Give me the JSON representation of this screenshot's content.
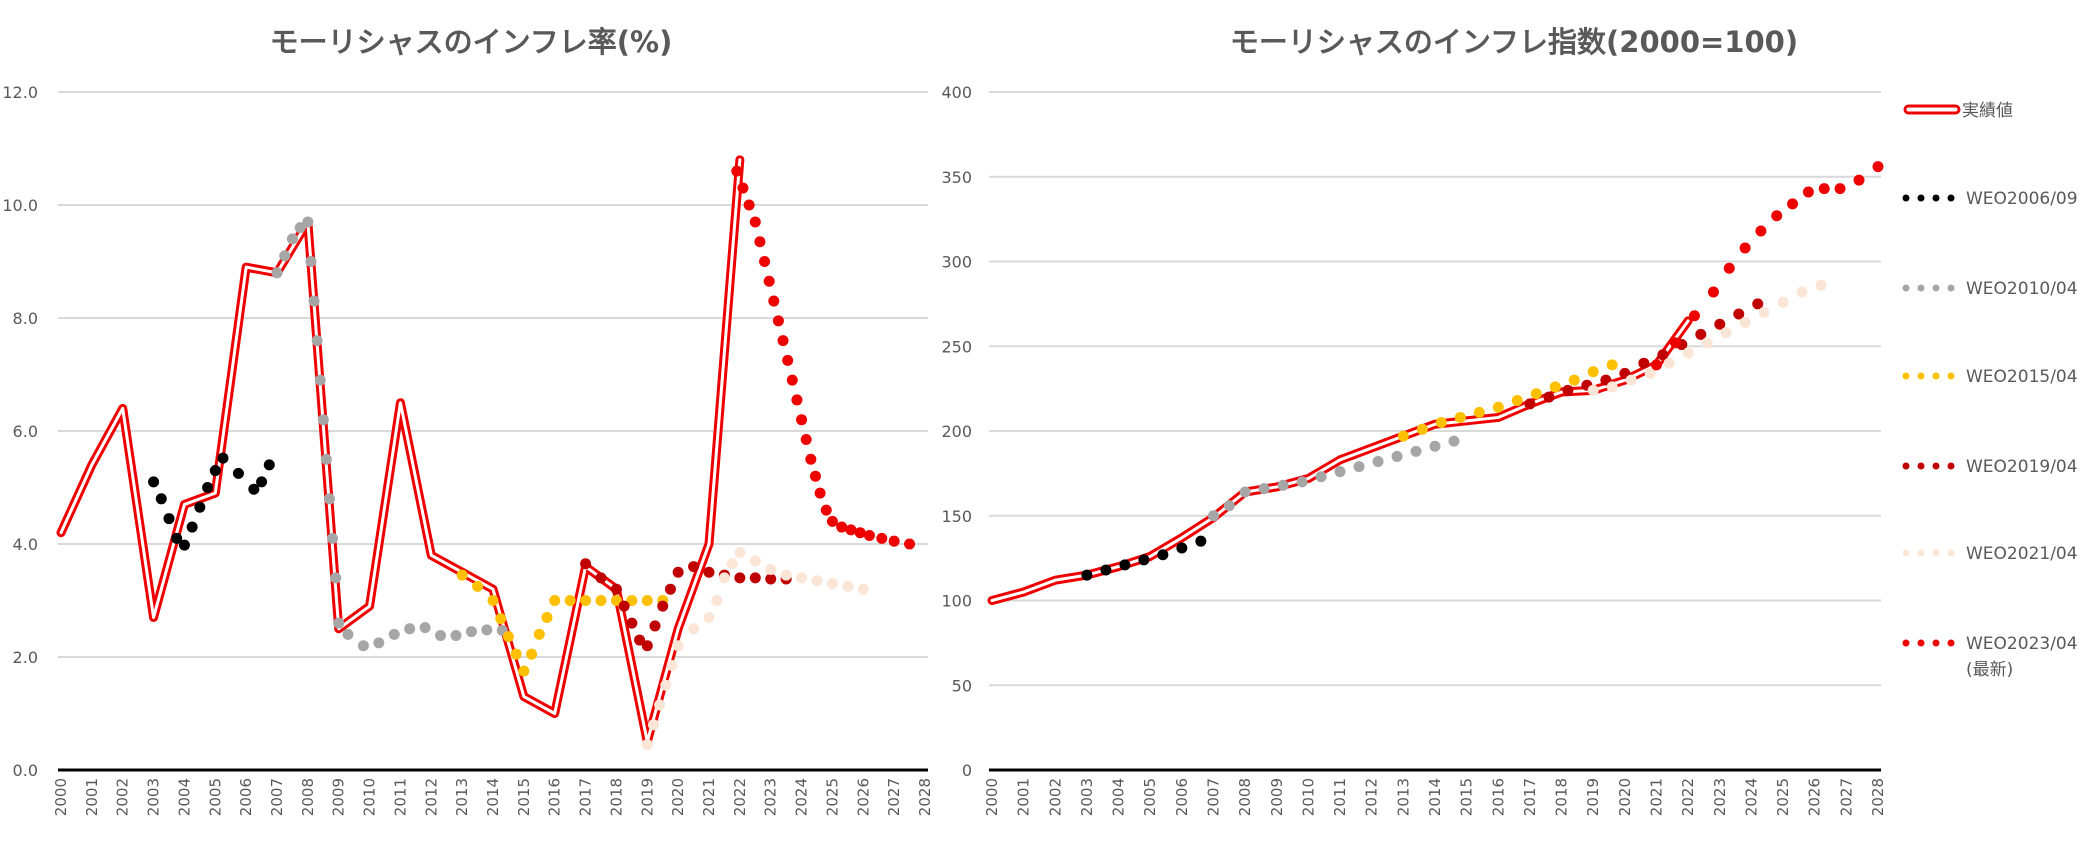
{
  "chart_data": [
    {
      "type": "line",
      "title": "モーリシャスのインフレ率(%)",
      "xlabel": "",
      "ylabel": "",
      "xlim": [
        2000,
        2028
      ],
      "ylim": [
        0,
        12
      ],
      "yticks": [
        "0.0",
        "2.0",
        "4.0",
        "6.0",
        "8.0",
        "10.0",
        "12.0"
      ],
      "ytick_values": [
        0,
        2,
        4,
        6,
        8,
        10,
        12
      ],
      "xticks": [
        "2000",
        "2001",
        "2002",
        "2003",
        "2004",
        "2005",
        "2006",
        "2007",
        "2008",
        "2009",
        "2010",
        "2011",
        "2012",
        "2013",
        "2014",
        "2015",
        "2016",
        "2017",
        "2018",
        "2019",
        "2020",
        "2021",
        "2022",
        "2023",
        "2024",
        "2025",
        "2026",
        "2027",
        "2028"
      ],
      "grid": true,
      "series": [
        {
          "name": "実績値",
          "style": "double-line",
          "color": "#ee0000",
          "x": [
            2000,
            2001,
            2002,
            2003,
            2004,
            2005,
            2006,
            2007,
            2008,
            2009,
            2010,
            2011,
            2012,
            2013,
            2014,
            2015,
            2016,
            2017,
            2018,
            2019,
            2020,
            2021,
            2022
          ],
          "y": [
            4.2,
            5.4,
            6.4,
            2.7,
            4.7,
            4.9,
            8.9,
            8.8,
            9.7,
            2.5,
            2.9,
            6.5,
            3.8,
            3.5,
            3.2,
            1.3,
            1.0,
            3.6,
            3.2,
            0.5,
            2.5,
            4.0,
            10.8
          ]
        },
        {
          "name": "WEO2006/09",
          "style": "dots",
          "color": "#000000",
          "x": [
            2003,
            2003.25,
            2003.5,
            2003.75,
            2004,
            2004.25,
            2004.5,
            2004.75,
            2005,
            2005.25,
            2005.75,
            2006.25,
            2006.5,
            2006.75
          ],
          "y": [
            5.1,
            4.8,
            4.45,
            4.1,
            3.98,
            4.3,
            4.65,
            5.0,
            5.3,
            5.52,
            5.25,
            4.97,
            5.1,
            5.4
          ]
        },
        {
          "name": "WEO2010/04",
          "style": "dots",
          "color": "#a6a6a6",
          "x": [
            2007,
            2007.25,
            2007.5,
            2007.75,
            2008,
            2008.1,
            2008.2,
            2008.3,
            2008.4,
            2008.5,
            2008.6,
            2008.7,
            2008.8,
            2008.9,
            2009,
            2009.3,
            2009.8,
            2010.3,
            2010.8,
            2011.3,
            2011.8,
            2012.3,
            2012.8,
            2013.3,
            2013.8,
            2014.3
          ],
          "y": [
            8.8,
            9.1,
            9.4,
            9.6,
            9.7,
            9.0,
            8.3,
            7.6,
            6.9,
            6.2,
            5.5,
            4.8,
            4.1,
            3.4,
            2.6,
            2.4,
            2.2,
            2.25,
            2.4,
            2.5,
            2.52,
            2.38,
            2.38,
            2.45,
            2.48,
            2.47
          ]
        },
        {
          "name": "WEO2015/04",
          "style": "dots",
          "color": "#ffc000",
          "x": [
            2013,
            2013.5,
            2014,
            2014.25,
            2014.5,
            2014.75,
            2015,
            2015.25,
            2015.5,
            2015.75,
            2016,
            2016.5,
            2017,
            2017.5,
            2018,
            2018.5,
            2019,
            2019.5
          ],
          "y": [
            3.45,
            3.25,
            3.0,
            2.68,
            2.36,
            2.05,
            1.75,
            2.05,
            2.4,
            2.7,
            3.0,
            3.0,
            3.0,
            3.0,
            3.0,
            3.0,
            3.0,
            3.0
          ]
        },
        {
          "name": "WEO2019/04",
          "style": "dots",
          "color": "#c00000",
          "x": [
            2017,
            2017.5,
            2018,
            2018.25,
            2018.5,
            2018.75,
            2019,
            2019.25,
            2019.5,
            2019.75,
            2020,
            2020.5,
            2021,
            2021.5,
            2022,
            2022.5,
            2023,
            2023.5
          ],
          "y": [
            3.65,
            3.4,
            3.2,
            2.9,
            2.6,
            2.3,
            2.2,
            2.55,
            2.9,
            3.2,
            3.5,
            3.6,
            3.5,
            3.45,
            3.4,
            3.4,
            3.38,
            3.38
          ]
        },
        {
          "name": "WEO2021/04",
          "style": "dots",
          "color": "#fbe5d6",
          "x": [
            2019,
            2019.2,
            2019.4,
            2019.6,
            2019.8,
            2020,
            2020.5,
            2021,
            2021.25,
            2021.5,
            2021.75,
            2022,
            2022.5,
            2023,
            2023.5,
            2024,
            2024.5,
            2025,
            2025.5,
            2026
          ],
          "y": [
            0.45,
            0.8,
            1.15,
            1.5,
            1.85,
            2.2,
            2.5,
            2.7,
            3.0,
            3.4,
            3.65,
            3.85,
            3.7,
            3.55,
            3.45,
            3.4,
            3.35,
            3.3,
            3.25,
            3.2
          ]
        },
        {
          "name": "WEO2023/04 (最新)",
          "style": "dots",
          "color": "#ee0000",
          "x": [
            2021.9,
            2022.1,
            2022.3,
            2022.5,
            2022.65,
            2022.8,
            2022.95,
            2023.1,
            2023.25,
            2023.4,
            2023.55,
            2023.7,
            2023.85,
            2024,
            2024.15,
            2024.3,
            2024.45,
            2024.6,
            2024.8,
            2025,
            2025.3,
            2025.6,
            2025.9,
            2026.2,
            2026.6,
            2027,
            2027.5
          ],
          "y": [
            10.6,
            10.3,
            10.0,
            9.7,
            9.35,
            9.0,
            8.65,
            8.3,
            7.95,
            7.6,
            7.25,
            6.9,
            6.55,
            6.2,
            5.85,
            5.5,
            5.2,
            4.9,
            4.6,
            4.4,
            4.3,
            4.25,
            4.2,
            4.15,
            4.1,
            4.05,
            4.0
          ]
        }
      ]
    },
    {
      "type": "line",
      "title": "モーリシャスのインフレ指数(2000=100)",
      "xlabel": "",
      "ylabel": "",
      "xlim": [
        2000,
        2028
      ],
      "ylim": [
        0,
        400
      ],
      "yticks": [
        "0",
        "50",
        "100",
        "150",
        "200",
        "250",
        "300",
        "350",
        "400"
      ],
      "ytick_values": [
        0,
        50,
        100,
        150,
        200,
        250,
        300,
        350,
        400
      ],
      "xticks": [
        "2000",
        "2001",
        "2002",
        "2003",
        "2004",
        "2005",
        "2006",
        "2007",
        "2008",
        "2009",
        "2010",
        "2011",
        "2012",
        "2013",
        "2014",
        "2015",
        "2016",
        "2017",
        "2018",
        "2019",
        "2020",
        "2021",
        "2022",
        "2023",
        "2024",
        "2025",
        "2026",
        "2027",
        "2028"
      ],
      "grid": true,
      "legend_position": "right",
      "series": [
        {
          "name": "実績値",
          "style": "double-line",
          "color": "#ee0000",
          "x": [
            2000,
            2001,
            2002,
            2003,
            2004,
            2005,
            2006,
            2007,
            2008,
            2009,
            2010,
            2011,
            2012,
            2013,
            2014,
            2015,
            2016,
            2017,
            2018,
            2019,
            2020,
            2021,
            2022
          ],
          "y": [
            100,
            105,
            112,
            115,
            120,
            126,
            137,
            149,
            164,
            167,
            172,
            183,
            190,
            197,
            204,
            206,
            208,
            216,
            223,
            224,
            230,
            239,
            265
          ]
        },
        {
          "name": "WEO2006/09",
          "style": "dots",
          "color": "#000000",
          "x": [
            2003,
            2003.6,
            2004.2,
            2004.8,
            2005.4,
            2006,
            2006.6
          ],
          "y": [
            115,
            118,
            121,
            124,
            127,
            131,
            135
          ]
        },
        {
          "name": "WEO2010/04",
          "style": "dots",
          "color": "#a6a6a6",
          "x": [
            2007,
            2007.5,
            2008,
            2008.6,
            2009.2,
            2009.8,
            2010.4,
            2011,
            2011.6,
            2012.2,
            2012.8,
            2013.4,
            2014,
            2014.6
          ],
          "y": [
            150,
            156,
            164,
            166,
            168,
            170,
            173,
            176,
            179,
            182,
            185,
            188,
            191,
            194
          ]
        },
        {
          "name": "WEO2015/04",
          "style": "dots",
          "color": "#ffc000",
          "x": [
            2013,
            2013.6,
            2014.2,
            2014.8,
            2015.4,
            2016,
            2016.6,
            2017.2,
            2017.8,
            2018.4,
            2019,
            2019.6
          ],
          "y": [
            197,
            201,
            205,
            208,
            211,
            214,
            218,
            222,
            226,
            230,
            235,
            239
          ]
        },
        {
          "name": "WEO2019/04",
          "style": "dots",
          "color": "#c00000",
          "x": [
            2017,
            2017.6,
            2018.2,
            2018.8,
            2019.4,
            2020,
            2020.6,
            2021.2,
            2021.8,
            2022.4,
            2023,
            2023.6,
            2024.2
          ],
          "y": [
            216,
            220,
            224,
            227,
            230,
            234,
            240,
            245,
            251,
            257,
            263,
            269,
            275
          ]
        },
        {
          "name": "WEO2021/04",
          "style": "dots",
          "color": "#fbe5d6",
          "x": [
            2019,
            2019.6,
            2020.2,
            2020.8,
            2021.4,
            2022,
            2022.6,
            2023.2,
            2023.8,
            2024.4,
            2025,
            2025.6,
            2026.2
          ],
          "y": [
            224,
            226,
            230,
            234,
            240,
            246,
            252,
            258,
            264,
            270,
            276,
            282,
            286
          ]
        },
        {
          "name": "WEO2023/04 (最新)",
          "style": "dots",
          "color": "#ee0000",
          "x": [
            2021,
            2021.6,
            2022.2,
            2022.8,
            2023.3,
            2023.8,
            2024.3,
            2024.8,
            2025.3,
            2025.8,
            2026.3,
            2026.8,
            2027.4,
            2028
          ],
          "y": [
            239,
            252,
            268,
            282,
            296,
            308,
            318,
            327,
            334,
            341,
            343,
            343,
            348,
            356
          ]
        }
      ]
    }
  ],
  "legend": {
    "items": [
      {
        "label": "実績値",
        "color": "#ee0000",
        "style": "double-line"
      },
      {
        "label": "WEO2006/09",
        "color": "#000000",
        "style": "dots"
      },
      {
        "label": "WEO2010/04",
        "color": "#a6a6a6",
        "style": "dots"
      },
      {
        "label": "WEO2015/04",
        "color": "#ffc000",
        "style": "dots"
      },
      {
        "label": "WEO2019/04",
        "color": "#c00000",
        "style": "dots"
      },
      {
        "label": "WEO2021/04",
        "color": "#fbe5d6",
        "style": "dots"
      },
      {
        "label": "WEO2023/04",
        "label2": "(最新)",
        "color": "#ee0000",
        "style": "dots"
      }
    ]
  }
}
